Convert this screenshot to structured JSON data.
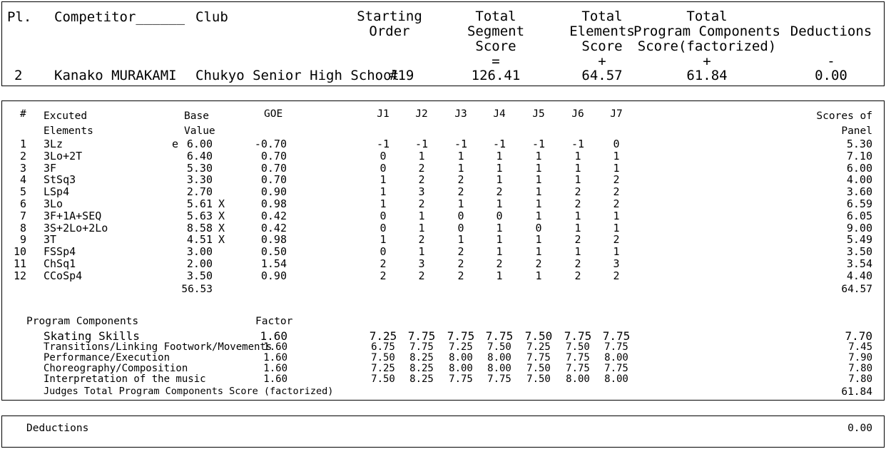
{
  "header": {
    "pl_label": "Pl.",
    "competitor_label": "Competitor______",
    "club_label": "Club",
    "starting_order_label": [
      "Starting",
      "Order"
    ],
    "tss_label": [
      "Total",
      "Segment",
      "Score",
      "="
    ],
    "tes_label": [
      "Total",
      "Elements",
      "Score",
      "+"
    ],
    "pcs_label": [
      "Total",
      "Program Components",
      "Score(factorized)",
      "+"
    ],
    "ded_label": [
      "Deductions",
      "-"
    ],
    "place": "2",
    "competitor": "Kanako MURAKAMI",
    "club": "Chukyo Senior High School",
    "starting_order": "#19",
    "tss": "126.41",
    "tes": "64.57",
    "pcs": "61.84",
    "deductions": "0.00"
  },
  "elements": {
    "col_num": "#",
    "col_elem": [
      "Excuted",
      "Elements"
    ],
    "col_base": [
      "Base",
      "Value"
    ],
    "col_goe": "GOE",
    "judges": [
      "J1",
      "J2",
      "J3",
      "J4",
      "J5",
      "J6",
      "J7"
    ],
    "col_panel": [
      "Scores of",
      "Panel"
    ],
    "rows": [
      {
        "n": "1",
        "name": "3Lz",
        "info": "e",
        "base": "6.00",
        "x": "",
        "goe": "-0.70",
        "j": [
          "-1",
          "-1",
          "-1",
          "-1",
          "-1",
          "-1",
          "0"
        ],
        "panel": "5.30"
      },
      {
        "n": "2",
        "name": "3Lo+2T",
        "info": "",
        "base": "6.40",
        "x": "",
        "goe": "0.70",
        "j": [
          "0",
          "1",
          "1",
          "1",
          "1",
          "1",
          "1"
        ],
        "panel": "7.10"
      },
      {
        "n": "3",
        "name": "3F",
        "info": "",
        "base": "5.30",
        "x": "",
        "goe": "0.70",
        "j": [
          "0",
          "2",
          "1",
          "1",
          "1",
          "1",
          "1"
        ],
        "panel": "6.00"
      },
      {
        "n": "4",
        "name": "StSq3",
        "info": "",
        "base": "3.30",
        "x": "",
        "goe": "0.70",
        "j": [
          "1",
          "2",
          "2",
          "1",
          "1",
          "1",
          "2"
        ],
        "panel": "4.00"
      },
      {
        "n": "5",
        "name": "LSp4",
        "info": "",
        "base": "2.70",
        "x": "",
        "goe": "0.90",
        "j": [
          "1",
          "3",
          "2",
          "2",
          "1",
          "2",
          "2"
        ],
        "panel": "3.60"
      },
      {
        "n": "6",
        "name": "3Lo",
        "info": "",
        "base": "5.61",
        "x": "X",
        "goe": "0.98",
        "j": [
          "1",
          "2",
          "1",
          "1",
          "1",
          "2",
          "2"
        ],
        "panel": "6.59"
      },
      {
        "n": "7",
        "name": "3F+1A+SEQ",
        "info": "",
        "base": "5.63",
        "x": "X",
        "goe": "0.42",
        "j": [
          "0",
          "1",
          "0",
          "0",
          "1",
          "1",
          "1"
        ],
        "panel": "6.05"
      },
      {
        "n": "8",
        "name": "3S+2Lo+2Lo",
        "info": "",
        "base": "8.58",
        "x": "X",
        "goe": "0.42",
        "j": [
          "0",
          "1",
          "0",
          "1",
          "0",
          "1",
          "1"
        ],
        "panel": "9.00"
      },
      {
        "n": "9",
        "name": "3T",
        "info": "",
        "base": "4.51",
        "x": "X",
        "goe": "0.98",
        "j": [
          "1",
          "2",
          "1",
          "1",
          "1",
          "2",
          "2"
        ],
        "panel": "5.49"
      },
      {
        "n": "10",
        "name": "FSSp4",
        "info": "",
        "base": "3.00",
        "x": "",
        "goe": "0.50",
        "j": [
          "0",
          "1",
          "2",
          "1",
          "1",
          "1",
          "1"
        ],
        "panel": "3.50"
      },
      {
        "n": "11",
        "name": "ChSq1",
        "info": "",
        "base": "2.00",
        "x": "",
        "goe": "1.54",
        "j": [
          "2",
          "3",
          "2",
          "2",
          "2",
          "2",
          "3"
        ],
        "panel": "3.54"
      },
      {
        "n": "12",
        "name": "CCoSp4",
        "info": "",
        "base": "3.50",
        "x": "",
        "goe": "0.90",
        "j": [
          "2",
          "2",
          "2",
          "1",
          "1",
          "2",
          "2"
        ],
        "panel": "4.40"
      }
    ],
    "base_total": "56.53",
    "panel_total": "64.57"
  },
  "components": {
    "title": "Program Components",
    "factor_label": "Factor",
    "rows": [
      {
        "name": "Skating Skills",
        "factor": "1.60",
        "j": [
          "7.25",
          "7.75",
          "7.75",
          "7.75",
          "7.50",
          "7.75",
          "7.75"
        ],
        "panel": "7.70"
      },
      {
        "name": "Transitions/Linking Footwork/Movements",
        "factor": "1.60",
        "j": [
          "6.75",
          "7.75",
          "7.25",
          "7.50",
          "7.25",
          "7.50",
          "7.75"
        ],
        "panel": "7.45"
      },
      {
        "name": "Performance/Execution",
        "factor": "1.60",
        "j": [
          "7.50",
          "8.25",
          "8.00",
          "8.00",
          "7.75",
          "7.75",
          "8.00"
        ],
        "panel": "7.90"
      },
      {
        "name": "Choreography/Composition",
        "factor": "1.60",
        "j": [
          "7.25",
          "8.25",
          "8.00",
          "8.00",
          "7.50",
          "7.75",
          "7.75"
        ],
        "panel": "7.80"
      },
      {
        "name": "Interpretation of the music",
        "factor": "1.60",
        "j": [
          "7.50",
          "8.25",
          "7.75",
          "7.75",
          "7.50",
          "8.00",
          "8.00"
        ],
        "panel": "7.80"
      }
    ],
    "total_label": "Judges Total Program Components Score (factorized)",
    "total": "61.84"
  },
  "deductions_box": {
    "label": "Deductions",
    "value": "0.00"
  }
}
